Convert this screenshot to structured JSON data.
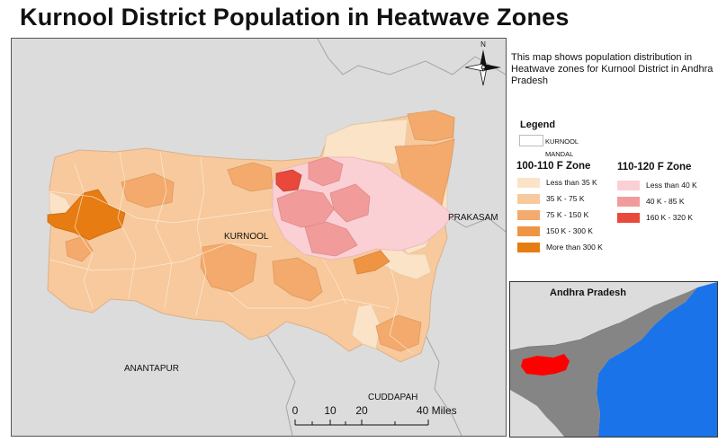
{
  "title": "Kurnool District Population in Heatwave Zones",
  "description": "This map shows population distribution in Heatwave zones for Kurnool District in Andhra Pradesh",
  "north_label": "N",
  "map_labels": {
    "kurnool": "KURNOOL",
    "prakasam": "PRAKASAM",
    "anantapur": "ANANTAPUR",
    "cuddapah": "CUDDAPAH"
  },
  "legend": {
    "title": "Legend",
    "mandal_label": "KURNOOL MANDAL",
    "zone_100_110": {
      "title": "100-110 F Zone",
      "classes": [
        {
          "label": "Less than 35 K",
          "color": "#fbe3c7"
        },
        {
          "label": "35 K - 75 K",
          "color": "#f7c99c"
        },
        {
          "label": "75 K - 150 K",
          "color": "#f3aa6c"
        },
        {
          "label": "150 K - 300 K",
          "color": "#ee9443"
        },
        {
          "label": "More than 300 K",
          "color": "#e67c12"
        }
      ]
    },
    "zone_110_120": {
      "title": "110-120 F Zone",
      "classes": [
        {
          "label": "Less than 40 K",
          "color": "#fad0d4"
        },
        {
          "label": "40 K - 85 K",
          "color": "#f29b9b"
        },
        {
          "label": "160 K - 320 K",
          "color": "#e8493a"
        }
      ]
    }
  },
  "scale_bar": {
    "ticks": [
      "0",
      "10",
      "20",
      "40 Miles"
    ]
  },
  "inset": {
    "title": "Andhra Pradesh",
    "sea_color": "#1a73e8",
    "land_color": "#858585",
    "highlight_color": "#ff0000"
  },
  "colors": {
    "background_land": "#dcdcdc",
    "boundary": "#a8a8a8"
  }
}
